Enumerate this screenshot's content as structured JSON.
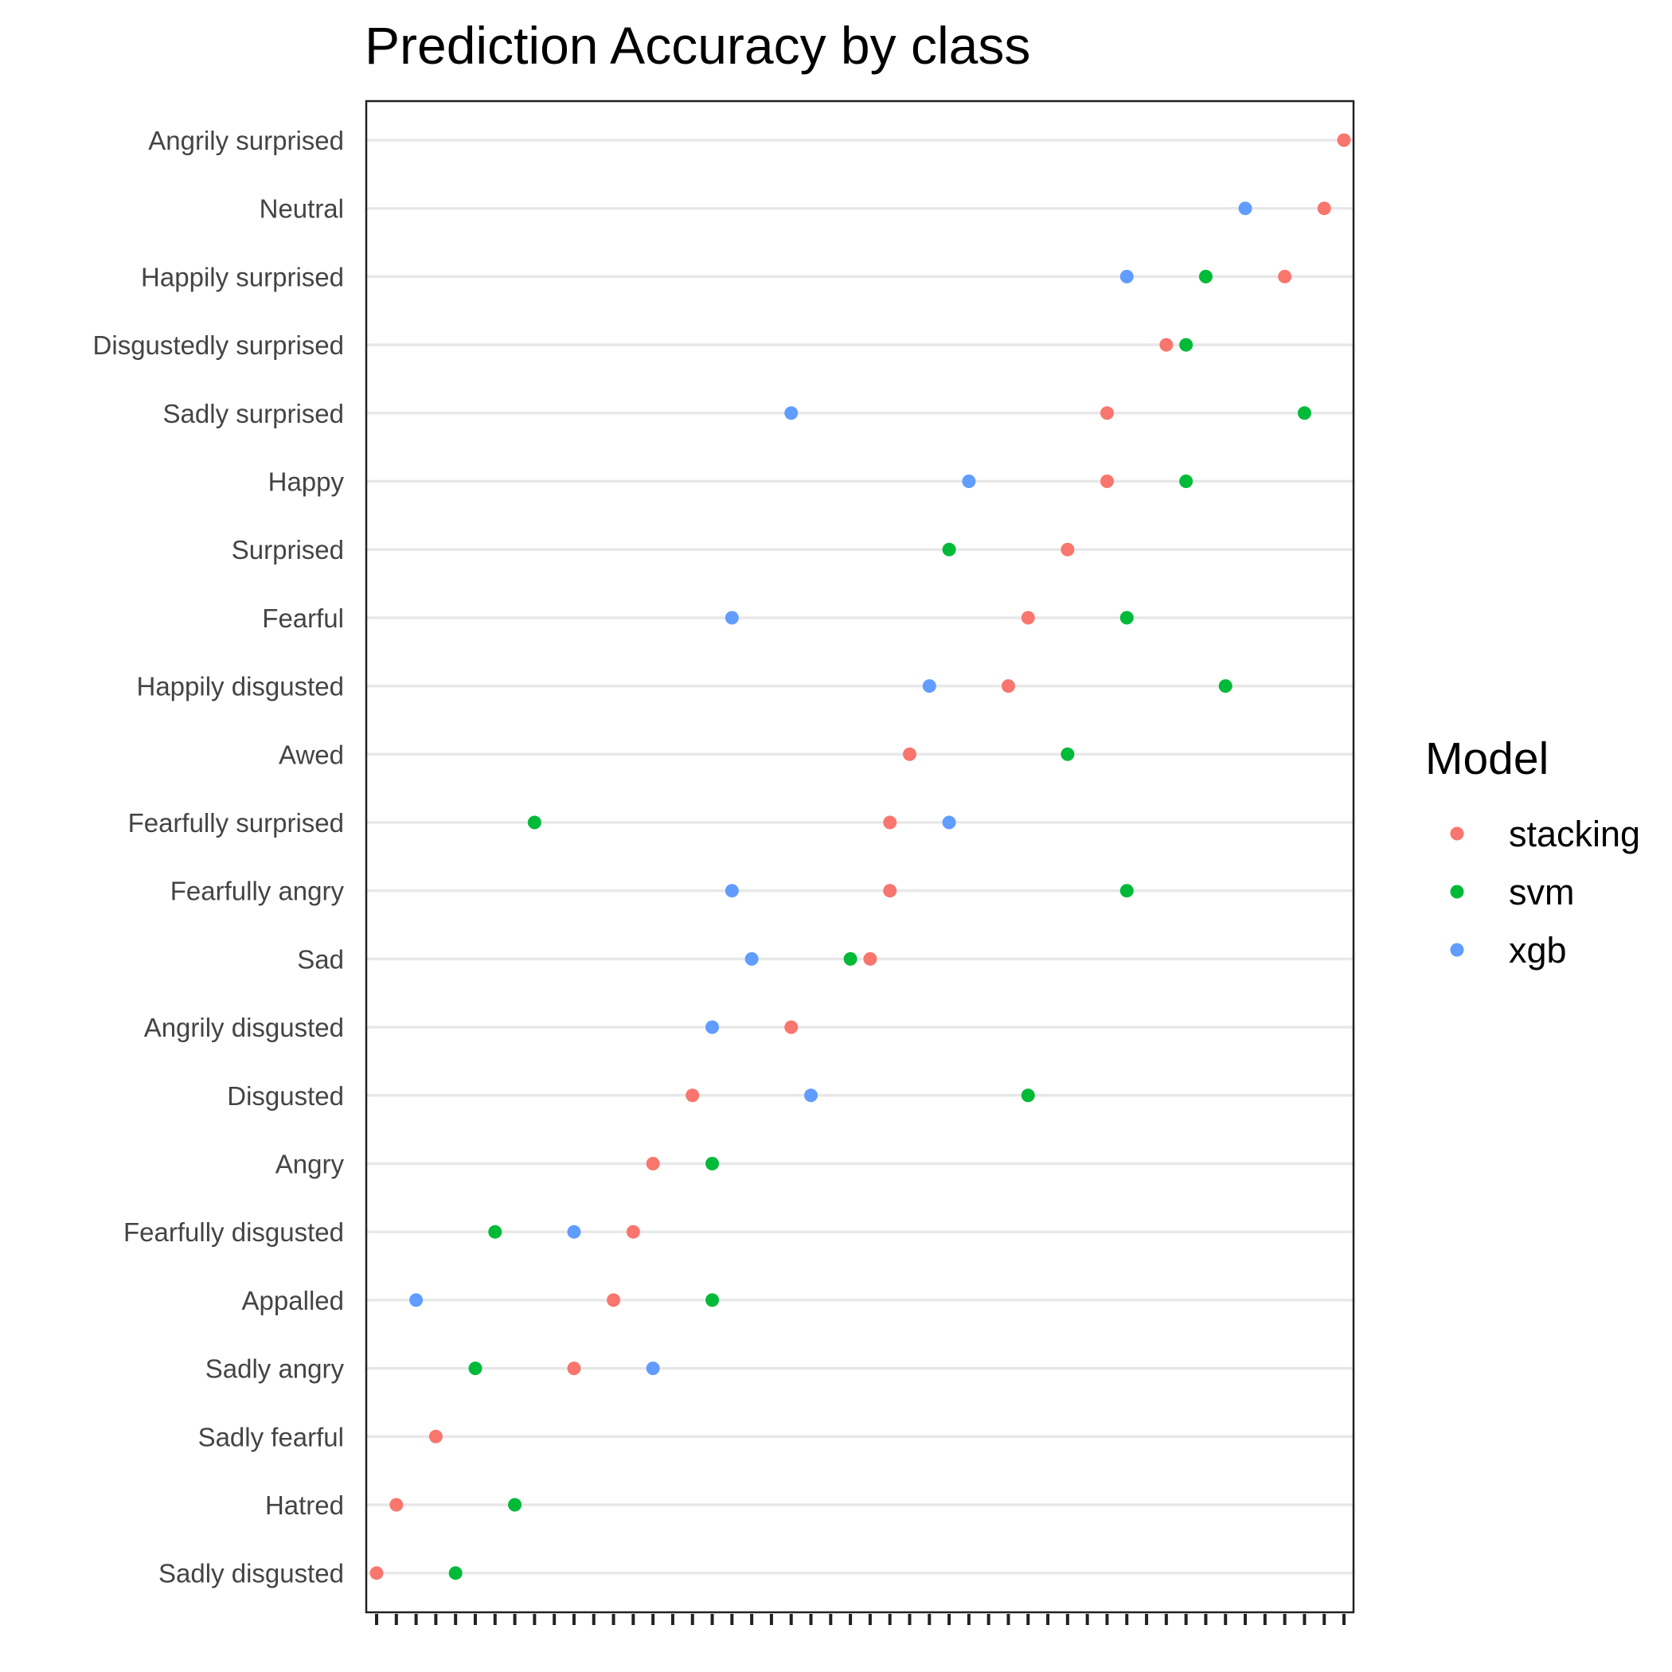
{
  "chart_data": {
    "type": "scatter",
    "title": "Prediction Accuracy by class",
    "xlabel": "",
    "ylabel": "",
    "legend": {
      "title": "Model",
      "placement": "right"
    },
    "grid": "horizontal major only",
    "xlim": [
      0,
      49
    ],
    "x_tick_count": 50,
    "categories": [
      "Angrily surprised",
      "Neutral",
      "Happily surprised",
      "Disgustedly surprised",
      "Sadly surprised",
      "Happy",
      "Surprised",
      "Fearful",
      "Happily disgusted",
      "Awed",
      "Fearfully surprised",
      "Fearfully angry",
      "Sad",
      "Angrily disgusted",
      "Disgusted",
      "Angry",
      "Fearfully disgusted",
      "Appalled",
      "Sadly angry",
      "Sadly fearful",
      "Hatred",
      "Sadly disgusted"
    ],
    "series": [
      {
        "name": "stacking",
        "color": "#F8766D",
        "values": [
          49,
          48,
          46,
          40,
          37,
          37,
          35,
          33,
          32,
          27,
          26,
          26,
          25,
          21,
          16,
          14,
          13,
          12,
          10,
          3,
          1,
          0
        ]
      },
      {
        "name": "svm",
        "color": "#00BA38",
        "values": [
          null,
          null,
          42,
          41,
          47,
          41,
          29,
          38,
          43,
          35,
          8,
          38,
          24,
          null,
          33,
          17,
          6,
          17,
          5,
          null,
          7,
          4
        ]
      },
      {
        "name": "xgb",
        "color": "#619CFF",
        "values": [
          null,
          44,
          38,
          null,
          21,
          30,
          null,
          18,
          28,
          null,
          29,
          18,
          19,
          17,
          22,
          null,
          10,
          2,
          14,
          null,
          null,
          null
        ]
      }
    ]
  }
}
